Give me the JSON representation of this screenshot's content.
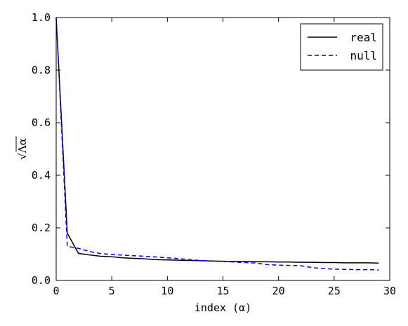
{
  "chart_data": {
    "type": "line",
    "xlabel": "index (α)",
    "ylabel": "√Λα",
    "xlim": [
      0,
      30
    ],
    "ylim": [
      0,
      1.0
    ],
    "x_ticks": [
      "0",
      "5",
      "10",
      "15",
      "20",
      "25",
      "30"
    ],
    "y_ticks": [
      "0.0",
      "0.2",
      "0.4",
      "0.6",
      "0.8",
      "1.0"
    ],
    "legend_position": "top-right",
    "grid": false,
    "series": [
      {
        "name": "real",
        "color": "#000000",
        "style": "solid",
        "x": [
          0,
          1,
          2,
          3,
          4,
          5,
          6,
          7,
          8,
          9,
          10,
          11,
          12,
          13,
          14,
          15,
          16,
          17,
          18,
          19,
          20,
          21,
          22,
          23,
          24,
          25,
          26,
          27,
          28,
          29
        ],
        "y": [
          1.0,
          0.18,
          0.103,
          0.097,
          0.092,
          0.09,
          0.086,
          0.084,
          0.082,
          0.079,
          0.078,
          0.077,
          0.076,
          0.075,
          0.074,
          0.073,
          0.072,
          0.072,
          0.071,
          0.071,
          0.07,
          0.07,
          0.069,
          0.069,
          0.068,
          0.068,
          0.067,
          0.067,
          0.067,
          0.066
        ]
      },
      {
        "name": "null",
        "color": "#0000ff",
        "style": "dashed",
        "x": [
          0,
          1,
          2,
          3,
          4,
          5,
          6,
          7,
          8,
          9,
          10,
          11,
          12,
          13,
          14,
          15,
          16,
          17,
          18,
          19,
          20,
          21,
          22,
          23,
          24,
          25,
          26,
          27,
          28,
          29
        ],
        "y": [
          1.0,
          0.13,
          0.122,
          0.11,
          0.102,
          0.099,
          0.096,
          0.094,
          0.092,
          0.089,
          0.086,
          0.083,
          0.079,
          0.076,
          0.073,
          0.072,
          0.07,
          0.068,
          0.066,
          0.06,
          0.058,
          0.057,
          0.056,
          0.049,
          0.045,
          0.043,
          0.042,
          0.041,
          0.041,
          0.04
        ]
      }
    ]
  }
}
